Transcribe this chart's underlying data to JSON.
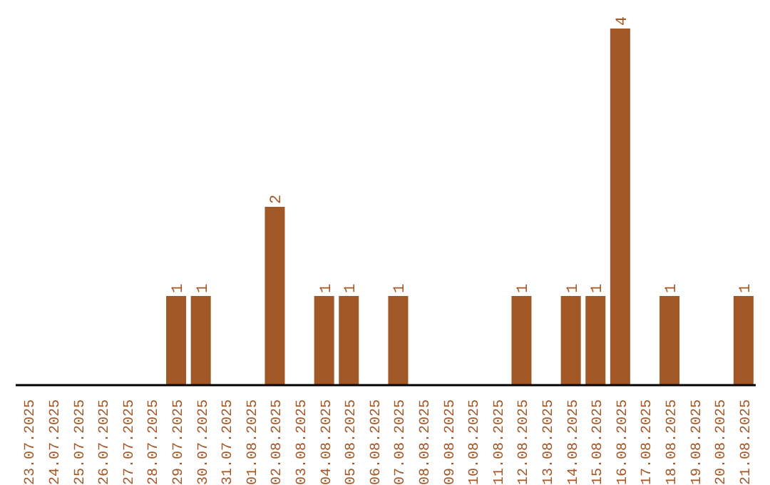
{
  "chart_data": {
    "type": "bar",
    "categories": [
      "23.07.2025",
      "24.07.2025",
      "25.07.2025",
      "26.07.2025",
      "27.07.2025",
      "28.07.2025",
      "29.07.2025",
      "30.07.2025",
      "31.07.2025",
      "01.08.2025",
      "02.08.2025",
      "03.08.2025",
      "04.08.2025",
      "05.08.2025",
      "06.08.2025",
      "07.08.2025",
      "08.08.2025",
      "09.08.2025",
      "10.08.2025",
      "11.08.2025",
      "12.08.2025",
      "13.08.2025",
      "14.08.2025",
      "15.08.2025",
      "16.08.2025",
      "17.08.2025",
      "18.08.2025",
      "19.08.2025",
      "20.08.2025",
      "21.08.2025"
    ],
    "values": [
      0,
      0,
      0,
      0,
      0,
      0,
      1,
      1,
      0,
      0,
      2,
      0,
      1,
      1,
      0,
      1,
      0,
      0,
      0,
      0,
      1,
      0,
      1,
      1,
      4,
      0,
      1,
      0,
      0,
      1
    ],
    "value_labels": [
      null,
      null,
      null,
      null,
      null,
      null,
      "1",
      "1",
      null,
      null,
      "2",
      null,
      "1",
      "1",
      null,
      "1",
      null,
      null,
      null,
      null,
      "1",
      null,
      "1",
      "1",
      "4",
      null,
      "1",
      null,
      null,
      "1"
    ],
    "color": "#a25726",
    "grid": false,
    "legend": false
  }
}
